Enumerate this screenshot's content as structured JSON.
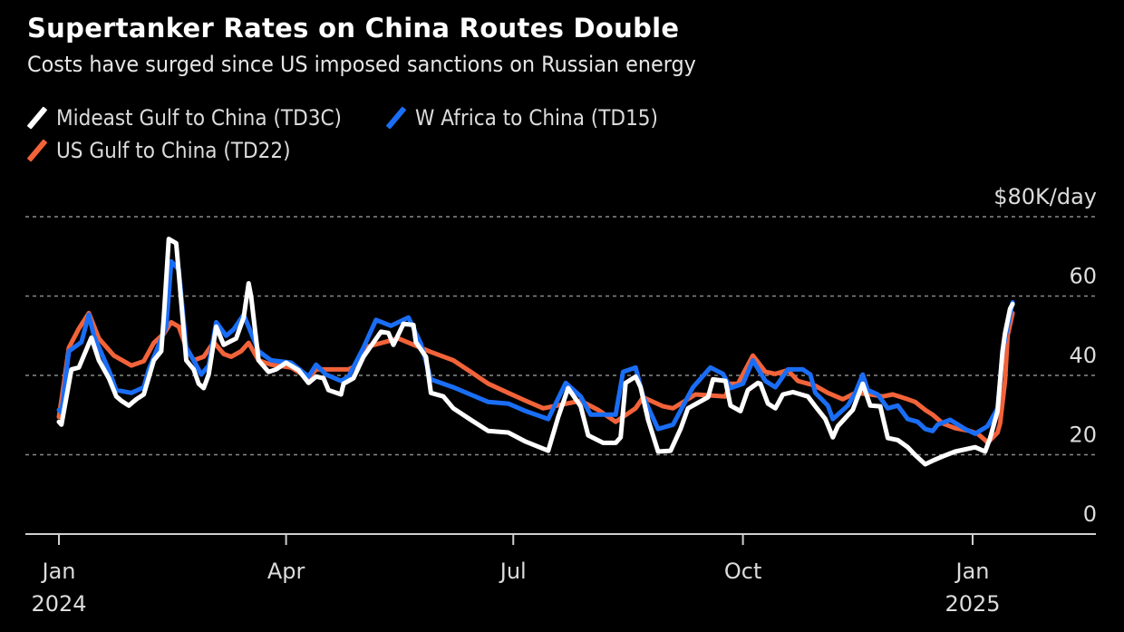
{
  "header": {
    "title": "Supertanker Rates on China Routes Double",
    "subtitle": "Costs have surged since US imposed sanctions on Russian energy"
  },
  "legend": [
    {
      "label": "Mideast Gulf to China (TD3C)",
      "color": "#ffffff"
    },
    {
      "label": "W Africa to China (TD15)",
      "color": "#1a6ef5"
    },
    {
      "label": "US Gulf to China (TD22)",
      "color": "#f2633a"
    }
  ],
  "chart_data": {
    "type": "line",
    "title": "Supertanker Rates on China Routes Double",
    "subtitle": "Costs have surged since US imposed sanctions on Russian energy",
    "xlabel": "",
    "ylabel": "$K/day",
    "y_unit_label": "$80K/day",
    "ylim": [
      0,
      80
    ],
    "y_ticks": [
      {
        "value": 0,
        "label": "0"
      },
      {
        "value": 20,
        "label": "20"
      },
      {
        "value": 40,
        "label": "40"
      },
      {
        "value": 60,
        "label": "60"
      },
      {
        "value": 80,
        "label": "$80K/day"
      }
    ],
    "xlim": [
      "2023-12-12",
      "2025-02-14"
    ],
    "x_ticks": [
      {
        "date": "2024-01-01",
        "label": "Jan",
        "sublabel": "2024"
      },
      {
        "date": "2024-04-01",
        "label": "Apr",
        "sublabel": ""
      },
      {
        "date": "2024-07-01",
        "label": "Jul",
        "sublabel": ""
      },
      {
        "date": "2024-10-01",
        "label": "Oct",
        "sublabel": ""
      },
      {
        "date": "2025-01-01",
        "label": "Jan",
        "sublabel": "2025"
      }
    ],
    "grid": "horizontal-dotted",
    "legend_position": "top-left",
    "series": [
      {
        "name": "US Gulf to China (TD22)",
        "color": "#f2633a",
        "x": [
          "2024-01-01",
          "2024-01-03",
          "2024-01-05",
          "2024-01-09",
          "2024-01-13",
          "2024-01-17",
          "2024-01-23",
          "2024-01-30",
          "2024-02-04",
          "2024-02-08",
          "2024-02-12",
          "2024-02-15",
          "2024-02-18",
          "2024-02-21",
          "2024-02-24",
          "2024-02-28",
          "2024-03-03",
          "2024-03-07",
          "2024-03-10",
          "2024-03-14",
          "2024-03-17",
          "2024-03-21",
          "2024-03-26",
          "2024-04-03",
          "2024-04-10",
          "2024-04-13",
          "2024-04-20",
          "2024-04-26",
          "2024-04-30",
          "2024-05-02",
          "2024-05-16",
          "2024-05-29",
          "2024-06-07",
          "2024-06-14",
          "2024-06-21",
          "2024-06-29",
          "2024-07-06",
          "2024-07-13",
          "2024-07-28",
          "2024-08-04",
          "2024-08-11",
          "2024-08-19",
          "2024-08-22",
          "2024-08-30",
          "2024-09-03",
          "2024-09-12",
          "2024-09-24",
          "2024-09-26",
          "2024-09-29",
          "2024-10-05",
          "2024-10-10",
          "2024-10-14",
          "2024-10-19",
          "2024-10-23",
          "2024-10-30",
          "2024-11-04",
          "2024-11-10",
          "2024-11-15",
          "2024-11-21",
          "2024-11-26",
          "2024-11-30",
          "2024-12-06",
          "2024-12-09",
          "2024-12-13",
          "2024-12-16",
          "2024-12-20",
          "2024-12-25",
          "2024-12-31",
          "2025-01-03",
          "2025-01-06",
          "2025-01-07",
          "2025-01-11",
          "2025-01-12",
          "2025-01-14",
          "2025-01-15",
          "2025-01-17"
        ],
        "values": [
          29.5,
          38,
          47,
          51.8,
          55.7,
          49.3,
          45,
          42.5,
          43.6,
          48.2,
          50.5,
          53.4,
          52.3,
          47,
          43.8,
          44.7,
          48.4,
          45.4,
          44.7,
          46.1,
          48.2,
          43.8,
          42.7,
          42,
          39.3,
          41.5,
          41.5,
          41.5,
          42.7,
          47,
          49.3,
          45.9,
          43.8,
          40.9,
          37.9,
          35.6,
          33.6,
          31.7,
          33.6,
          31.3,
          28.3,
          31.7,
          34.5,
          32.2,
          31.7,
          35.2,
          34.7,
          37.9,
          37.9,
          45,
          40.9,
          40.4,
          41.3,
          38.6,
          37.4,
          35.6,
          34,
          35.6,
          35.2,
          34.7,
          35.2,
          34,
          33.3,
          31.3,
          30.1,
          27.9,
          26.7,
          26,
          25.3,
          23.7,
          23,
          25.6,
          27.9,
          38.6,
          50,
          55.7
        ]
      },
      {
        "name": "W Africa to China (TD15)",
        "color": "#1a6ef5",
        "x": [
          "2024-01-01",
          "2024-01-02",
          "2024-01-05",
          "2024-01-10",
          "2024-01-13",
          "2024-01-15",
          "2024-01-21",
          "2024-01-24",
          "2024-01-30",
          "2024-02-04",
          "2024-02-06",
          "2024-02-13",
          "2024-02-15",
          "2024-02-18",
          "2024-02-21",
          "2024-02-24",
          "2024-02-27",
          "2024-03-01",
          "2024-03-04",
          "2024-03-08",
          "2024-03-11",
          "2024-03-15",
          "2024-03-21",
          "2024-03-26",
          "2024-04-03",
          "2024-04-10",
          "2024-04-13",
          "2024-04-17",
          "2024-04-23",
          "2024-04-26",
          "2024-05-02",
          "2024-05-07",
          "2024-05-13",
          "2024-05-20",
          "2024-05-25",
          "2024-05-29",
          "2024-06-07",
          "2024-06-21",
          "2024-06-29",
          "2024-07-06",
          "2024-07-15",
          "2024-07-22",
          "2024-07-28",
          "2024-08-01",
          "2024-08-11",
          "2024-08-14",
          "2024-08-19",
          "2024-08-22",
          "2024-08-28",
          "2024-09-03",
          "2024-09-11",
          "2024-09-18",
          "2024-09-23",
          "2024-09-26",
          "2024-10-01",
          "2024-10-05",
          "2024-10-10",
          "2024-10-14",
          "2024-10-19",
          "2024-10-25",
          "2024-10-28",
          "2024-10-30",
          "2024-11-04",
          "2024-11-06",
          "2024-11-12",
          "2024-11-15",
          "2024-11-18",
          "2024-11-20",
          "2024-11-24",
          "2024-11-28",
          "2024-12-02",
          "2024-12-06",
          "2024-12-10",
          "2024-12-13",
          "2024-12-16",
          "2024-12-18",
          "2024-12-23",
          "2024-12-29",
          "2025-01-02",
          "2025-01-07",
          "2025-01-11",
          "2025-01-12",
          "2025-01-13",
          "2025-01-17"
        ],
        "values": [
          31.3,
          30.6,
          46.1,
          48.4,
          55.3,
          50,
          41.3,
          36.3,
          35.6,
          37,
          41.5,
          52.3,
          68.7,
          66.7,
          47,
          43.8,
          40.2,
          42.5,
          53.4,
          50,
          51.6,
          55.3,
          46.1,
          43.8,
          43.2,
          39.7,
          42.7,
          40.2,
          38.6,
          39.7,
          47,
          54,
          52.5,
          54.6,
          48,
          39,
          37,
          33.3,
          32.9,
          31,
          29,
          38.1,
          34.7,
          30.1,
          30.1,
          40.9,
          42,
          34.7,
          26.5,
          27.6,
          37,
          42,
          40.4,
          36.8,
          37.9,
          43.8,
          38.6,
          37,
          41.5,
          41.5,
          40.2,
          35.6,
          32.4,
          29,
          32.4,
          35.6,
          40.2,
          36.3,
          35.2,
          31.7,
          32.4,
          29,
          28.3,
          26.5,
          26,
          27.6,
          28.8,
          26.5,
          25.3,
          27.2,
          31.7,
          38.6,
          46.1,
          58.4
        ]
      },
      {
        "name": "Mideast Gulf to China (TD3C)",
        "color": "#ffffff",
        "x": [
          "2024-01-01",
          "2024-01-02",
          "2024-01-06",
          "2024-01-09",
          "2024-01-14",
          "2024-01-17",
          "2024-01-21",
          "2024-01-24",
          "2024-01-26",
          "2024-01-29",
          "2024-02-01",
          "2024-02-04",
          "2024-02-08",
          "2024-02-11",
          "2024-02-12",
          "2024-02-14",
          "2024-02-17",
          "2024-02-19",
          "2024-02-21",
          "2024-02-24",
          "2024-02-26",
          "2024-02-28",
          "2024-03-01",
          "2024-03-04",
          "2024-03-07",
          "2024-03-12",
          "2024-03-15",
          "2024-03-17",
          "2024-03-18",
          "2024-03-21",
          "2024-03-25",
          "2024-03-28",
          "2024-04-01",
          "2024-04-06",
          "2024-04-10",
          "2024-04-13",
          "2024-04-16",
          "2024-04-18",
          "2024-04-23",
          "2024-04-24",
          "2024-04-28",
          "2024-05-02",
          "2024-05-09",
          "2024-05-12",
          "2024-05-14",
          "2024-05-18",
          "2024-05-22",
          "2024-05-23",
          "2024-05-27",
          "2024-05-29",
          "2024-06-03",
          "2024-06-07",
          "2024-06-14",
          "2024-06-21",
          "2024-06-29",
          "2024-07-06",
          "2024-07-15",
          "2024-07-19",
          "2024-07-23",
          "2024-07-28",
          "2024-07-31",
          "2024-08-06",
          "2024-08-11",
          "2024-08-13",
          "2024-08-15",
          "2024-08-19",
          "2024-08-21",
          "2024-08-24",
          "2024-08-28",
          "2024-09-02",
          "2024-09-06",
          "2024-09-09",
          "2024-09-17",
          "2024-09-19",
          "2024-09-24",
          "2024-09-26",
          "2024-09-30",
          "2024-10-03",
          "2024-10-07",
          "2024-10-08",
          "2024-10-11",
          "2024-10-14",
          "2024-10-17",
          "2024-10-21",
          "2024-10-27",
          "2024-10-30",
          "2024-11-03",
          "2024-11-06",
          "2024-11-08",
          "2024-11-14",
          "2024-11-18",
          "2024-11-21",
          "2024-11-25",
          "2024-11-28",
          "2024-12-02",
          "2024-12-06",
          "2024-12-09",
          "2024-12-13",
          "2024-12-16",
          "2024-12-20",
          "2024-12-25",
          "2025-01-02",
          "2025-01-06",
          "2025-01-08",
          "2025-01-11",
          "2025-01-13",
          "2025-01-14",
          "2025-01-16",
          "2025-01-17"
        ],
        "values": [
          28.3,
          27.6,
          41.5,
          42,
          49.5,
          43.8,
          39.3,
          34.7,
          33.6,
          32.4,
          34,
          35.2,
          43.8,
          46.1,
          54.6,
          74.4,
          73.3,
          58.4,
          43.8,
          41.5,
          37.9,
          36.8,
          40.2,
          52.3,
          47.7,
          49.3,
          54.6,
          63.2,
          59.8,
          43.8,
          40.9,
          41.5,
          43.2,
          41.3,
          38.1,
          39.7,
          39.3,
          36.3,
          35.2,
          37.9,
          39.3,
          44.7,
          51,
          50.7,
          47.7,
          53,
          52.7,
          48.4,
          44.7,
          35.6,
          34.7,
          31.7,
          28.8,
          26,
          25.6,
          23.3,
          21,
          29.5,
          36.8,
          32.2,
          24.9,
          23,
          23,
          24.4,
          38.1,
          39.7,
          37,
          28.8,
          20.8,
          21,
          26.5,
          31.7,
          34.5,
          39,
          38.6,
          32.4,
          31,
          36.3,
          38.1,
          37.9,
          32.9,
          31.7,
          35.2,
          35.8,
          34.7,
          32.2,
          29,
          24.4,
          27.2,
          31.3,
          37.9,
          32.4,
          32.2,
          24.2,
          23.7,
          21.9,
          19.9,
          17.6,
          18.5,
          19.6,
          20.8,
          21.9,
          20.8,
          24.2,
          31,
          46.1,
          50.7,
          56.8,
          58
        ]
      }
    ]
  }
}
